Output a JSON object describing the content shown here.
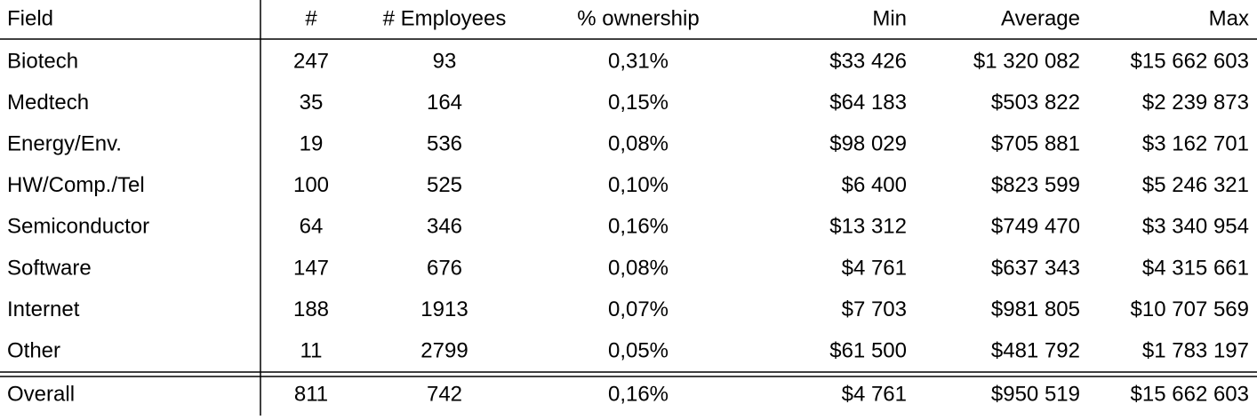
{
  "table": {
    "header": [
      "Field",
      "#",
      "# Employees",
      "% ownership",
      "Min",
      "Average",
      "Max"
    ],
    "rows": [
      [
        "Biotech",
        "247",
        "93",
        "0,31%",
        "$33 426",
        "$1 320 082",
        "$15 662 603"
      ],
      [
        "Medtech",
        "35",
        "164",
        "0,15%",
        "$64 183",
        "$503 822",
        "$2 239 873"
      ],
      [
        "Energy/Env.",
        "19",
        "536",
        "0,08%",
        "$98 029",
        "$705 881",
        "$3 162 701"
      ],
      [
        "HW/Comp./Tel",
        "100",
        "525",
        "0,10%",
        "$6 400",
        "$823 599",
        "$5 246 321"
      ],
      [
        "Semiconductor",
        "64",
        "346",
        "0,16%",
        "$13 312",
        "$749 470",
        "$3 340 954"
      ],
      [
        "Software",
        "147",
        "676",
        "0,08%",
        "$4 761",
        "$637 343",
        "$4 315 661"
      ],
      [
        "Internet",
        "188",
        "1913",
        "0,07%",
        "$7 703",
        "$981 805",
        "$10 707 569"
      ],
      [
        "Other",
        "11",
        "2799",
        "0,05%",
        "$61 500",
        "$481 792",
        "$1 783 197"
      ]
    ],
    "total": [
      "Overall",
      "811",
      "742",
      "0,16%",
      "$4 761",
      "$950 519",
      "$15 662 603"
    ]
  }
}
